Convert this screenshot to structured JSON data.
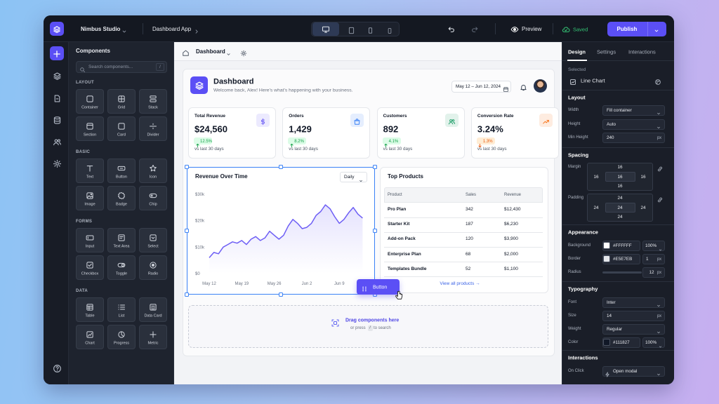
{
  "topbar": {
    "workspace": "Nimbus Studio",
    "project": "Dashboard App",
    "preview": "Preview",
    "status": "Saved",
    "publish": "Publish"
  },
  "components": {
    "title": "Components",
    "search_placeholder": "Search components...",
    "search_shortcut": "/",
    "sections": [
      {
        "label": "LAYOUT",
        "items": [
          "Container",
          "Grid",
          "Stack",
          "Section",
          "Card",
          "Divider"
        ]
      },
      {
        "label": "BASIC",
        "items": [
          "Text",
          "Button",
          "Icon",
          "Image",
          "Badge",
          "Chip"
        ]
      },
      {
        "label": "FORMS",
        "items": [
          "Input",
          "Text Area",
          "Select",
          "Checkbox",
          "Toggle",
          "Radio"
        ]
      },
      {
        "label": "DATA",
        "items": [
          "Table",
          "List",
          "Data Card",
          "Chart",
          "Progress",
          "Metric"
        ]
      }
    ]
  },
  "breadcrumb": "Dashboard",
  "dashboard": {
    "title": "Dashboard",
    "subtitle": "Welcome back, Alex! Here's what's happening with your business.",
    "date_range": "May 12 – Jun 12, 2024",
    "stats": [
      {
        "label": "Total Revenue",
        "value": "$24,560",
        "change": "12.5%",
        "trend": "up",
        "note": "vs last 30 days",
        "color": "#6d5ef5"
      },
      {
        "label": "Orders",
        "value": "1,429",
        "change": "8.2%",
        "trend": "up",
        "note": "vs last 30 days",
        "color": "#3b82f6"
      },
      {
        "label": "Customers",
        "value": "892",
        "change": "4.1%",
        "trend": "up",
        "note": "vs last 30 days",
        "color": "#22a06b"
      },
      {
        "label": "Conversion Rate",
        "value": "3.24%",
        "change": "1.3%",
        "trend": "down",
        "note": "vs last 30 days",
        "color": "#f97316"
      }
    ]
  },
  "chart_data": {
    "type": "line",
    "title": "Revenue Over Time",
    "period": "Daily",
    "color": "#6d5ef5",
    "grid": false,
    "x": [
      0,
      1,
      2,
      3,
      4,
      5,
      6,
      7,
      8,
      9,
      10,
      11,
      12,
      13,
      14,
      15,
      16,
      17,
      18,
      19,
      20,
      21,
      22,
      23,
      24,
      25,
      26,
      27,
      28,
      29,
      30,
      31,
      32,
      33
    ],
    "values": [
      6000,
      8000,
      7500,
      10000,
      11000,
      12000,
      11500,
      12500,
      11000,
      13000,
      14000,
      12500,
      13500,
      16000,
      14500,
      13000,
      14500,
      18000,
      20500,
      19000,
      17000,
      17500,
      19000,
      22000,
      23500,
      26000,
      24500,
      21500,
      19000,
      20500,
      23000,
      25000,
      22500,
      21000
    ],
    "xlim": [
      0,
      34
    ],
    "xticks": [
      {
        "value": 0,
        "label": "May 12"
      },
      {
        "value": 7,
        "label": "May 19"
      },
      {
        "value": 14,
        "label": "May 26"
      },
      {
        "value": 21,
        "label": "Jun 2"
      },
      {
        "value": 28,
        "label": "Jun 9"
      }
    ],
    "ylim": [
      0,
      30000
    ],
    "yticks": [
      {
        "value": 0,
        "label": "$0"
      },
      {
        "value": 10000,
        "label": "$10k"
      },
      {
        "value": 20000,
        "label": "$20k"
      },
      {
        "value": 30000,
        "label": "$30k"
      }
    ]
  },
  "products": {
    "title": "Top Products",
    "columns": [
      "Product",
      "Sales",
      "Revenue"
    ],
    "rows": [
      [
        "Pro Plan",
        342,
        "$12,430"
      ],
      [
        "Starter Kit",
        187,
        "$6,230"
      ],
      [
        "Add-on Pack",
        120,
        "$3,900"
      ],
      [
        "Enterprise Plan",
        68,
        "$2,000"
      ],
      [
        "Templates Bundle",
        52,
        "$1,100"
      ]
    ],
    "link": "View all products →"
  },
  "drag_chip": "Button",
  "dropzone": {
    "title": "Drag components here",
    "hint_before": "or press",
    "key": "/",
    "hint_after": "to search"
  },
  "inspector": {
    "tabs": [
      "Design",
      "Settings",
      "Interactions"
    ],
    "selected_label": "Selected",
    "selected": "Line Chart",
    "layout": {
      "title": "Layout",
      "width_label": "Width",
      "width": "Fill container",
      "height_label": "Height",
      "height": "Auto",
      "min_height_label": "Min Height",
      "min_height": 240,
      "unit": "px"
    },
    "spacing": {
      "title": "Spacing",
      "margin_label": "Margin",
      "margin": [
        16,
        16,
        16,
        16,
        16
      ],
      "padding_label": "Padding",
      "padding": [
        24,
        24,
        24,
        24,
        24
      ]
    },
    "appearance": {
      "title": "Appearance",
      "background_label": "Background",
      "background": "#FFFFFF",
      "background_opacity": "100%",
      "border_label": "Border",
      "border": "#E5E7EB",
      "border_width": 1,
      "border_unit": "px",
      "radius_label": "Radius",
      "radius": 12,
      "radius_unit": "px"
    },
    "typography": {
      "title": "Typography",
      "font_label": "Font",
      "font": "Inter",
      "size_label": "Size",
      "size": 14,
      "size_unit": "px",
      "weight_label": "Weight",
      "weight": "Regular",
      "color_label": "Color",
      "color": "#111827",
      "color_opacity": "100%"
    },
    "interactions": {
      "title": "Interactions",
      "on_click_label": "On Click",
      "on_click": "Open modal"
    }
  }
}
